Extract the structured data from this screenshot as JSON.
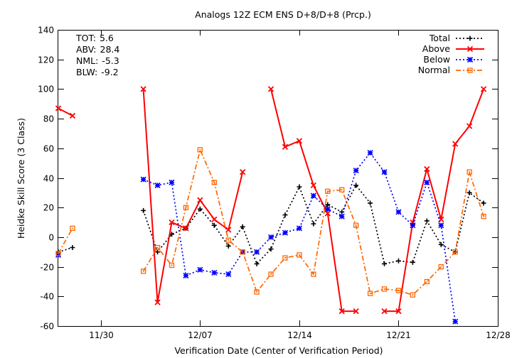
{
  "chart_data": {
    "type": "line",
    "title": "Analogs 12Z ECM ENS D+8/D+8 (Prcp.)",
    "xlabel": "Verification Date (Center of Verification Period)",
    "ylabel": "Heidke Skill Score (3 Class)",
    "ylim": [
      -60,
      140
    ],
    "yticks": [
      -60,
      -40,
      -20,
      0,
      20,
      40,
      60,
      80,
      100,
      120,
      140
    ],
    "xlim": [
      "2025-11-27",
      "2025-12-28"
    ],
    "xticks": [
      {
        "date": "2025-11-30",
        "label": "11/30"
      },
      {
        "date": "2025-12-07",
        "label": "12/07"
      },
      {
        "date": "2025-12-14",
        "label": "12/14"
      },
      {
        "date": "2025-12-21",
        "label": "12/21"
      },
      {
        "date": "2025-12-28",
        "label": "12/28"
      }
    ],
    "grid": false,
    "legend_position": "top-right",
    "stats": [
      {
        "label": "TOT:",
        "value": "5.6"
      },
      {
        "label": "ABV:",
        "value": "28.4"
      },
      {
        "label": "NML:",
        "value": "-5.3"
      },
      {
        "label": "BLW:",
        "value": "-9.2"
      }
    ],
    "x": [
      "2025-11-27",
      "2025-11-28",
      "2025-11-29",
      "2025-11-30",
      "2025-12-01",
      "2025-12-02",
      "2025-12-03",
      "2025-12-04",
      "2025-12-05",
      "2025-12-06",
      "2025-12-07",
      "2025-12-08",
      "2025-12-09",
      "2025-12-10",
      "2025-12-11",
      "2025-12-12",
      "2025-12-13",
      "2025-12-14",
      "2025-12-15",
      "2025-12-16",
      "2025-12-17",
      "2025-12-18",
      "2025-12-19",
      "2025-12-20",
      "2025-12-21",
      "2025-12-22",
      "2025-12-23",
      "2025-12-24",
      "2025-12-25",
      "2025-12-26",
      "2025-12-27",
      "2025-12-28"
    ],
    "series": [
      {
        "name": "Total",
        "color": "#000000",
        "dash": "2,3",
        "marker": "plus",
        "values": [
          -10,
          -7,
          null,
          null,
          null,
          null,
          18,
          -10,
          2,
          6,
          19,
          8,
          -6,
          7,
          -18,
          -8,
          15,
          34,
          9,
          22,
          17,
          35,
          23,
          -18,
          -16,
          -17,
          11,
          -5,
          -10,
          30,
          23,
          null
        ]
      },
      {
        "name": "Above",
        "color": "#ff0000",
        "dash": "",
        "marker": "x",
        "values": [
          87,
          82,
          null,
          null,
          null,
          null,
          100,
          -44,
          10,
          6,
          25,
          12,
          5,
          44,
          null,
          100,
          61,
          65,
          35,
          16,
          -50,
          -50,
          null,
          -50,
          -50,
          10,
          46,
          12,
          63,
          75,
          100,
          null
        ]
      },
      {
        "name": "Below",
        "color": "#0000ff",
        "dash": "2,3",
        "marker": "star",
        "values": [
          -12,
          null,
          null,
          null,
          null,
          null,
          39,
          35,
          37,
          -26,
          -22,
          -24,
          -25,
          -10,
          -10,
          0,
          3,
          6,
          28,
          19,
          14,
          45,
          57,
          44,
          17,
          8,
          37,
          8,
          -57,
          null,
          null,
          null
        ]
      },
      {
        "name": "Normal",
        "color": "#ff6600",
        "dash": "7,3,2,3",
        "marker": "square",
        "values": [
          -11,
          6,
          null,
          null,
          null,
          null,
          -23,
          -7,
          -19,
          20,
          59,
          37,
          -2,
          -10,
          -37,
          -25,
          -14,
          -12,
          -25,
          31,
          32,
          8,
          -38,
          -35,
          -36,
          -39,
          -30,
          -20,
          -10,
          44,
          14,
          null
        ]
      }
    ]
  }
}
